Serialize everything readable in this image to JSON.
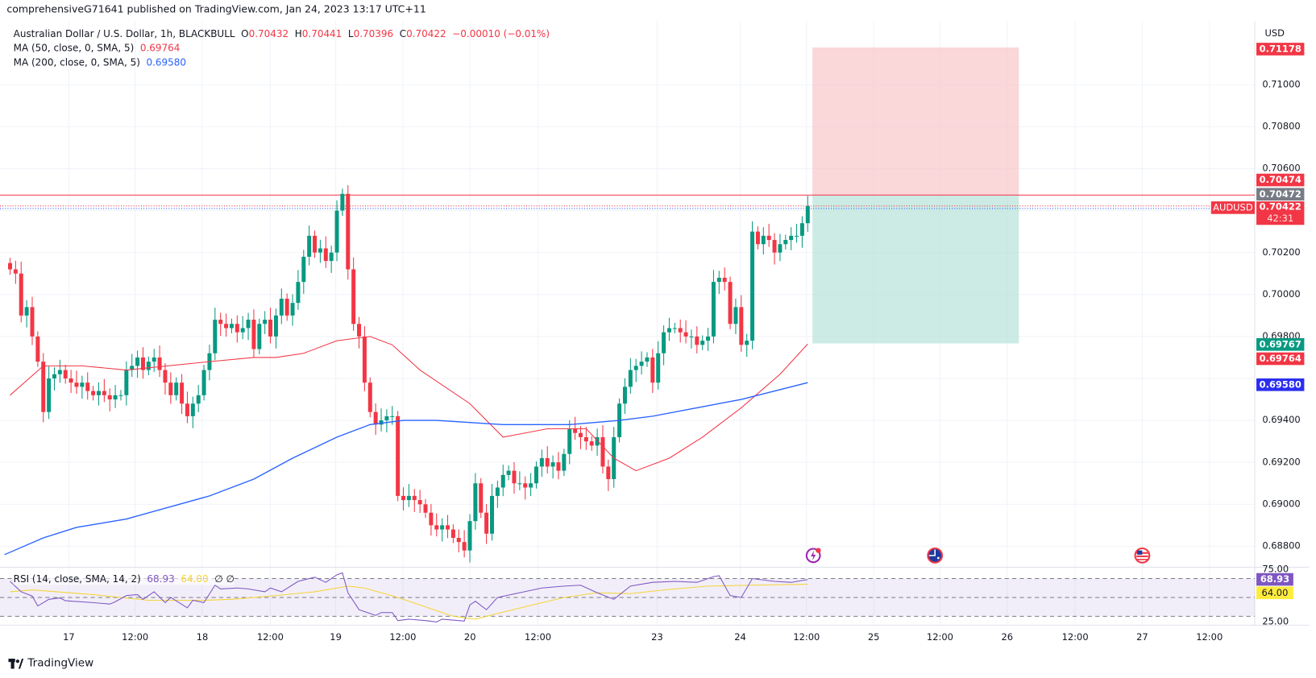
{
  "header": {
    "published": "comprehensiveG71641 published on TradingView.com, Jan 24, 2023 13:17 UTC+11",
    "symbol_desc": "Australian Dollar / U.S. Dollar, 1h, BLACKBULL",
    "o_label": "O",
    "o": "0.70432",
    "h_label": "H",
    "h": "0.70441",
    "l_label": "L",
    "l": "0.70396",
    "c_label": "C",
    "c": "0.70422",
    "change": "−0.00010 (−0.01%)",
    "ma50_label": "MA (50, close, 0, SMA, 5)",
    "ma50_value": "0.69764",
    "ma200_label": "MA (200, close, 0, SMA, 5)",
    "ma200_value": "0.69580",
    "rsi_label": "RSI (14, close, SMA, 14, 2)",
    "rsi_value": "68.93",
    "rsi_ma_value": "64.00",
    "rsi_extra": "∅ ∅"
  },
  "axis": {
    "currency": "USD",
    "price_ticks": [
      "0.71000",
      "0.70800",
      "0.70600",
      "0.70200",
      "0.70000",
      "0.69800",
      "0.69400",
      "0.69200",
      "0.69000",
      "0.68800"
    ],
    "rsi_ticks": [
      "75.00",
      "25.00"
    ],
    "time_labels": [
      "17",
      "12:00",
      "18",
      "12:00",
      "19",
      "12:00",
      "20",
      "12:00",
      "23",
      "24",
      "12:00",
      "25",
      "12:00",
      "26",
      "12:00",
      "27",
      "12:00"
    ]
  },
  "badges": {
    "target": "0.71178",
    "stop": "0.70474",
    "crosshair": "0.70472",
    "symbol": "AUDUSD",
    "last": "0.70422",
    "countdown": "42:31",
    "entry": "0.69767",
    "ma50": "0.69764",
    "ma200": "0.69580",
    "rsi": "68.93",
    "rsi_ma": "64.00"
  },
  "colors": {
    "up": "#089981",
    "down": "#f23645",
    "ma50": "#f23645",
    "ma200": "#2962ff",
    "rsi": "#7e57c2",
    "rsi_ma": "#f5d43a",
    "profit": "#f8c9cc",
    "loss": "#b7e2d8"
  },
  "footer": {
    "brand": "TradingView"
  },
  "chart_data": {
    "type": "candlestick",
    "title": "Australian Dollar / U.S. Dollar, 1h, BLACKBULL",
    "ylabel": "USD",
    "ylim": [
      0.687,
      0.7125
    ],
    "closes": [
      0.7012,
      0.701,
      0.699,
      0.6994,
      0.698,
      0.6968,
      0.6944,
      0.696,
      0.6962,
      0.6964,
      0.696,
      0.6958,
      0.6956,
      0.6958,
      0.6954,
      0.6952,
      0.6954,
      0.6952,
      0.695,
      0.6952,
      0.6952,
      0.6964,
      0.6966,
      0.697,
      0.6964,
      0.6968,
      0.697,
      0.6964,
      0.6958,
      0.6952,
      0.6958,
      0.6948,
      0.6942,
      0.6948,
      0.6952,
      0.6964,
      0.6972,
      0.6988,
      0.6986,
      0.6984,
      0.6986,
      0.6982,
      0.6984,
      0.6988,
      0.6974,
      0.6986,
      0.6988,
      0.698,
      0.699,
      0.6998,
      0.699,
      0.6996,
      0.7006,
      0.7018,
      0.7028,
      0.702,
      0.7022,
      0.7016,
      0.702,
      0.704,
      0.7048,
      0.7012,
      0.6986,
      0.698,
      0.6958,
      0.6944,
      0.6938,
      0.694,
      0.6942,
      0.6942,
      0.6904,
      0.6902,
      0.6904,
      0.6902,
      0.69,
      0.6896,
      0.689,
      0.6888,
      0.689,
      0.6888,
      0.6884,
      0.6882,
      0.6878,
      0.6892,
      0.691,
      0.6896,
      0.6886,
      0.6904,
      0.6908,
      0.6914,
      0.6916,
      0.691,
      0.691,
      0.6908,
      0.691,
      0.6918,
      0.6922,
      0.6918,
      0.692,
      0.6916,
      0.6924,
      0.6936,
      0.6934,
      0.6932,
      0.693,
      0.6928,
      0.6932,
      0.6918,
      0.6912,
      0.6932,
      0.6948,
      0.6956,
      0.6964,
      0.6966,
      0.6968,
      0.697,
      0.6958,
      0.6972,
      0.6982,
      0.6984,
      0.6984,
      0.6982,
      0.698,
      0.698,
      0.6976,
      0.6978,
      0.698,
      0.7006,
      0.7008,
      0.7006,
      0.6986,
      0.6994,
      0.6976,
      0.6978,
      0.703,
      0.7024,
      0.7028,
      0.7026,
      0.702,
      0.7024,
      0.7026,
      0.7028,
      0.7028,
      0.7034,
      0.70422
    ],
    "ma50": [
      [
        0,
        0.6952
      ],
      [
        6,
        0.6966
      ],
      [
        13,
        0.6966
      ],
      [
        21,
        0.6964
      ],
      [
        36,
        0.6968
      ],
      [
        44,
        0.697
      ],
      [
        48,
        0.697
      ],
      [
        53,
        0.6972
      ],
      [
        59,
        0.6978
      ],
      [
        65,
        0.698
      ],
      [
        69,
        0.6976
      ],
      [
        74,
        0.6964
      ],
      [
        83,
        0.6948
      ],
      [
        89,
        0.6932
      ],
      [
        97,
        0.6936
      ],
      [
        104,
        0.6936
      ],
      [
        109,
        0.6922
      ],
      [
        113,
        0.6916
      ],
      [
        119,
        0.6922
      ],
      [
        125,
        0.6932
      ],
      [
        132,
        0.6946
      ],
      [
        139,
        0.6962
      ],
      [
        144,
        0.69764
      ]
    ],
    "ma200": [
      [
        -1,
        0.6876
      ],
      [
        6,
        0.6884
      ],
      [
        12,
        0.6889
      ],
      [
        21,
        0.6893
      ],
      [
        36,
        0.6904
      ],
      [
        44,
        0.6912
      ],
      [
        51,
        0.6922
      ],
      [
        59,
        0.6932
      ],
      [
        65,
        0.6938
      ],
      [
        71,
        0.694
      ],
      [
        77,
        0.694
      ],
      [
        89,
        0.6938
      ],
      [
        101,
        0.6938
      ],
      [
        110,
        0.694
      ],
      [
        116,
        0.6942
      ],
      [
        124,
        0.6946
      ],
      [
        132,
        0.695
      ],
      [
        144,
        0.6958
      ]
    ],
    "position": {
      "target": 0.71178,
      "entry": 0.69767,
      "stop": 0.70474,
      "current": 0.70422
    },
    "rsi": {
      "ylim": [
        25,
        75
      ],
      "levels": [
        70,
        50,
        30
      ],
      "values": [
        [
          0,
          67
        ],
        [
          2,
          56
        ],
        [
          4,
          51.5
        ],
        [
          5,
          41
        ],
        [
          7,
          48
        ],
        [
          9,
          49.5
        ],
        [
          10,
          46.5
        ],
        [
          15,
          44.5
        ],
        [
          18,
          43
        ],
        [
          19,
          45.5
        ],
        [
          21,
          52
        ],
        [
          23,
          53
        ],
        [
          24,
          48
        ],
        [
          26,
          56
        ],
        [
          28,
          44.5
        ],
        [
          29,
          50
        ],
        [
          32,
          39
        ],
        [
          33,
          47
        ],
        [
          35,
          44.5
        ],
        [
          37,
          63
        ],
        [
          38,
          59
        ],
        [
          41,
          60
        ],
        [
          43,
          59
        ],
        [
          46,
          56
        ],
        [
          47,
          60
        ],
        [
          49,
          56
        ],
        [
          52,
          67
        ],
        [
          55,
          71.5
        ],
        [
          57,
          66
        ],
        [
          59,
          74
        ],
        [
          60,
          76
        ],
        [
          61,
          55
        ],
        [
          63,
          37
        ],
        [
          66,
          31
        ],
        [
          67,
          34
        ],
        [
          69,
          34
        ],
        [
          70,
          25.5
        ],
        [
          72,
          27
        ],
        [
          75,
          25.5
        ],
        [
          77,
          24
        ],
        [
          78,
          27
        ],
        [
          81,
          25.5
        ],
        [
          82,
          25
        ],
        [
          83,
          42
        ],
        [
          84,
          46
        ],
        [
          86,
          37
        ],
        [
          88,
          50
        ],
        [
          92,
          55
        ],
        [
          96,
          60
        ],
        [
          100,
          62
        ],
        [
          103,
          63
        ],
        [
          106,
          55
        ],
        [
          109,
          48
        ],
        [
          112,
          62
        ],
        [
          116,
          66
        ],
        [
          120,
          67
        ],
        [
          124,
          66
        ],
        [
          127,
          72
        ],
        [
          128,
          73
        ],
        [
          130,
          52
        ],
        [
          132,
          50
        ],
        [
          134,
          70
        ],
        [
          138,
          67
        ],
        [
          141,
          66
        ],
        [
          144,
          68.93
        ]
      ],
      "ma": [
        [
          0,
          56
        ],
        [
          4,
          58
        ],
        [
          15,
          53
        ],
        [
          25,
          47
        ],
        [
          35,
          47
        ],
        [
          40,
          48
        ],
        [
          48,
          52
        ],
        [
          55,
          56
        ],
        [
          61,
          62
        ],
        [
          64,
          60
        ],
        [
          70,
          50
        ],
        [
          76,
          38
        ],
        [
          80,
          30
        ],
        [
          84,
          27
        ],
        [
          88,
          33
        ],
        [
          95,
          43
        ],
        [
          100,
          50
        ],
        [
          106,
          55
        ],
        [
          112,
          54
        ],
        [
          118,
          58
        ],
        [
          126,
          62
        ],
        [
          134,
          63
        ],
        [
          144,
          64
        ]
      ]
    }
  }
}
